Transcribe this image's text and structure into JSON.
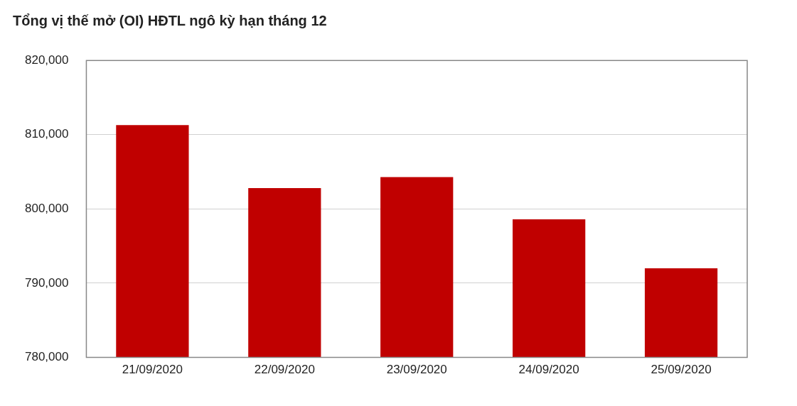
{
  "chart_data": {
    "type": "bar",
    "title": "Tổng vị thế mở (OI) HĐTL ngô kỳ  hạn tháng 12",
    "categories": [
      "21/09/2020",
      "22/09/2020",
      "23/09/2020",
      "24/09/2020",
      "25/09/2020"
    ],
    "values": [
      811300,
      802800,
      804300,
      798600,
      792000
    ],
    "color": "#c00000",
    "ylim": [
      780000,
      820000
    ],
    "yticks": [
      {
        "value": 780000,
        "label": "780,000"
      },
      {
        "value": 790000,
        "label": "790,000"
      },
      {
        "value": 800000,
        "label": "800,000"
      },
      {
        "value": 810000,
        "label": "810,000"
      },
      {
        "value": 820000,
        "label": "820,000"
      }
    ],
    "grid": "y",
    "legend": false
  }
}
